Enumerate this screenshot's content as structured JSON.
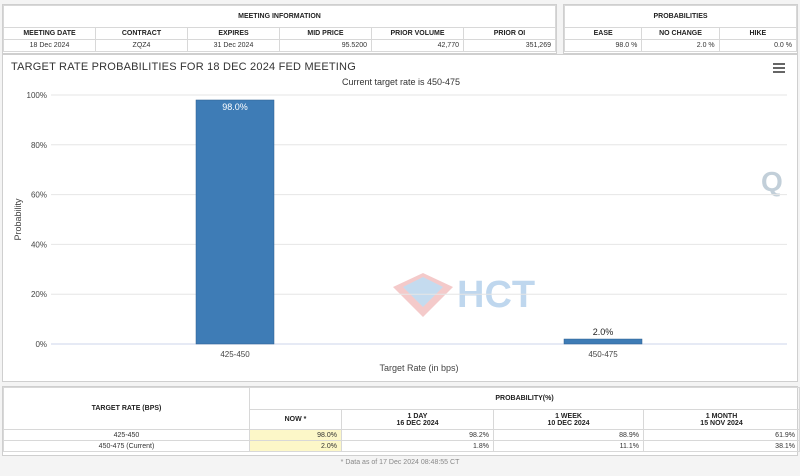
{
  "meeting_info": {
    "title": "MEETING INFORMATION",
    "headers": [
      "MEETING DATE",
      "CONTRACT",
      "EXPIRES",
      "MID PRICE",
      "PRIOR VOLUME",
      "PRIOR OI"
    ],
    "row": [
      "18 Dec 2024",
      "ZQZ4",
      "31 Dec 2024",
      "95.5200",
      "42,770",
      "351,269"
    ]
  },
  "probabilities": {
    "title": "PROBABILITIES",
    "headers": [
      "EASE",
      "NO CHANGE",
      "HIKE"
    ],
    "row": [
      "98.0 %",
      "2.0 %",
      "0.0 %"
    ]
  },
  "chart": {
    "menu_icon": "hamburger-menu-icon",
    "watermark_text": "HCT",
    "watermark_icon": "hct-diamond-logo-icon",
    "q_logo": "Q"
  },
  "chart_data": {
    "type": "bar",
    "title": "TARGET RATE PROBABILITIES FOR 18 DEC 2024 FED MEETING",
    "subtitle": "Current target rate is 450-475",
    "categories": [
      "425-450",
      "450-475"
    ],
    "values": [
      98.0,
      2.0
    ],
    "data_labels": [
      "98.0%",
      "2.0%"
    ],
    "xlabel": "Target Rate (in bps)",
    "ylabel": "Probability",
    "ylim": [
      0,
      100
    ],
    "yticks": [
      "0%",
      "20%",
      "40%",
      "60%",
      "80%",
      "100%"
    ],
    "ytick_values": [
      0,
      20,
      40,
      60,
      80,
      100
    ],
    "grid": true,
    "bar_color": "#3e7cb6"
  },
  "bottom_table": {
    "target_rate_header": "TARGET RATE (BPS)",
    "probability_header": "PROBABILITY(%)",
    "columns": [
      {
        "label": "NOW *",
        "date": ""
      },
      {
        "label": "1 DAY",
        "date": "16 DEC 2024"
      },
      {
        "label": "1 WEEK",
        "date": "10 DEC 2024"
      },
      {
        "label": "1 MONTH",
        "date": "15 NOV 2024"
      }
    ],
    "rows": [
      {
        "rate": "425-450",
        "values": [
          "98.0%",
          "98.2%",
          "88.9%",
          "61.9%"
        ]
      },
      {
        "rate": "450-475 (Current)",
        "values": [
          "2.0%",
          "1.8%",
          "11.1%",
          "38.1%"
        ]
      }
    ]
  },
  "footnote": "* Data as of 17 Dec 2024 08:48:55 CT"
}
